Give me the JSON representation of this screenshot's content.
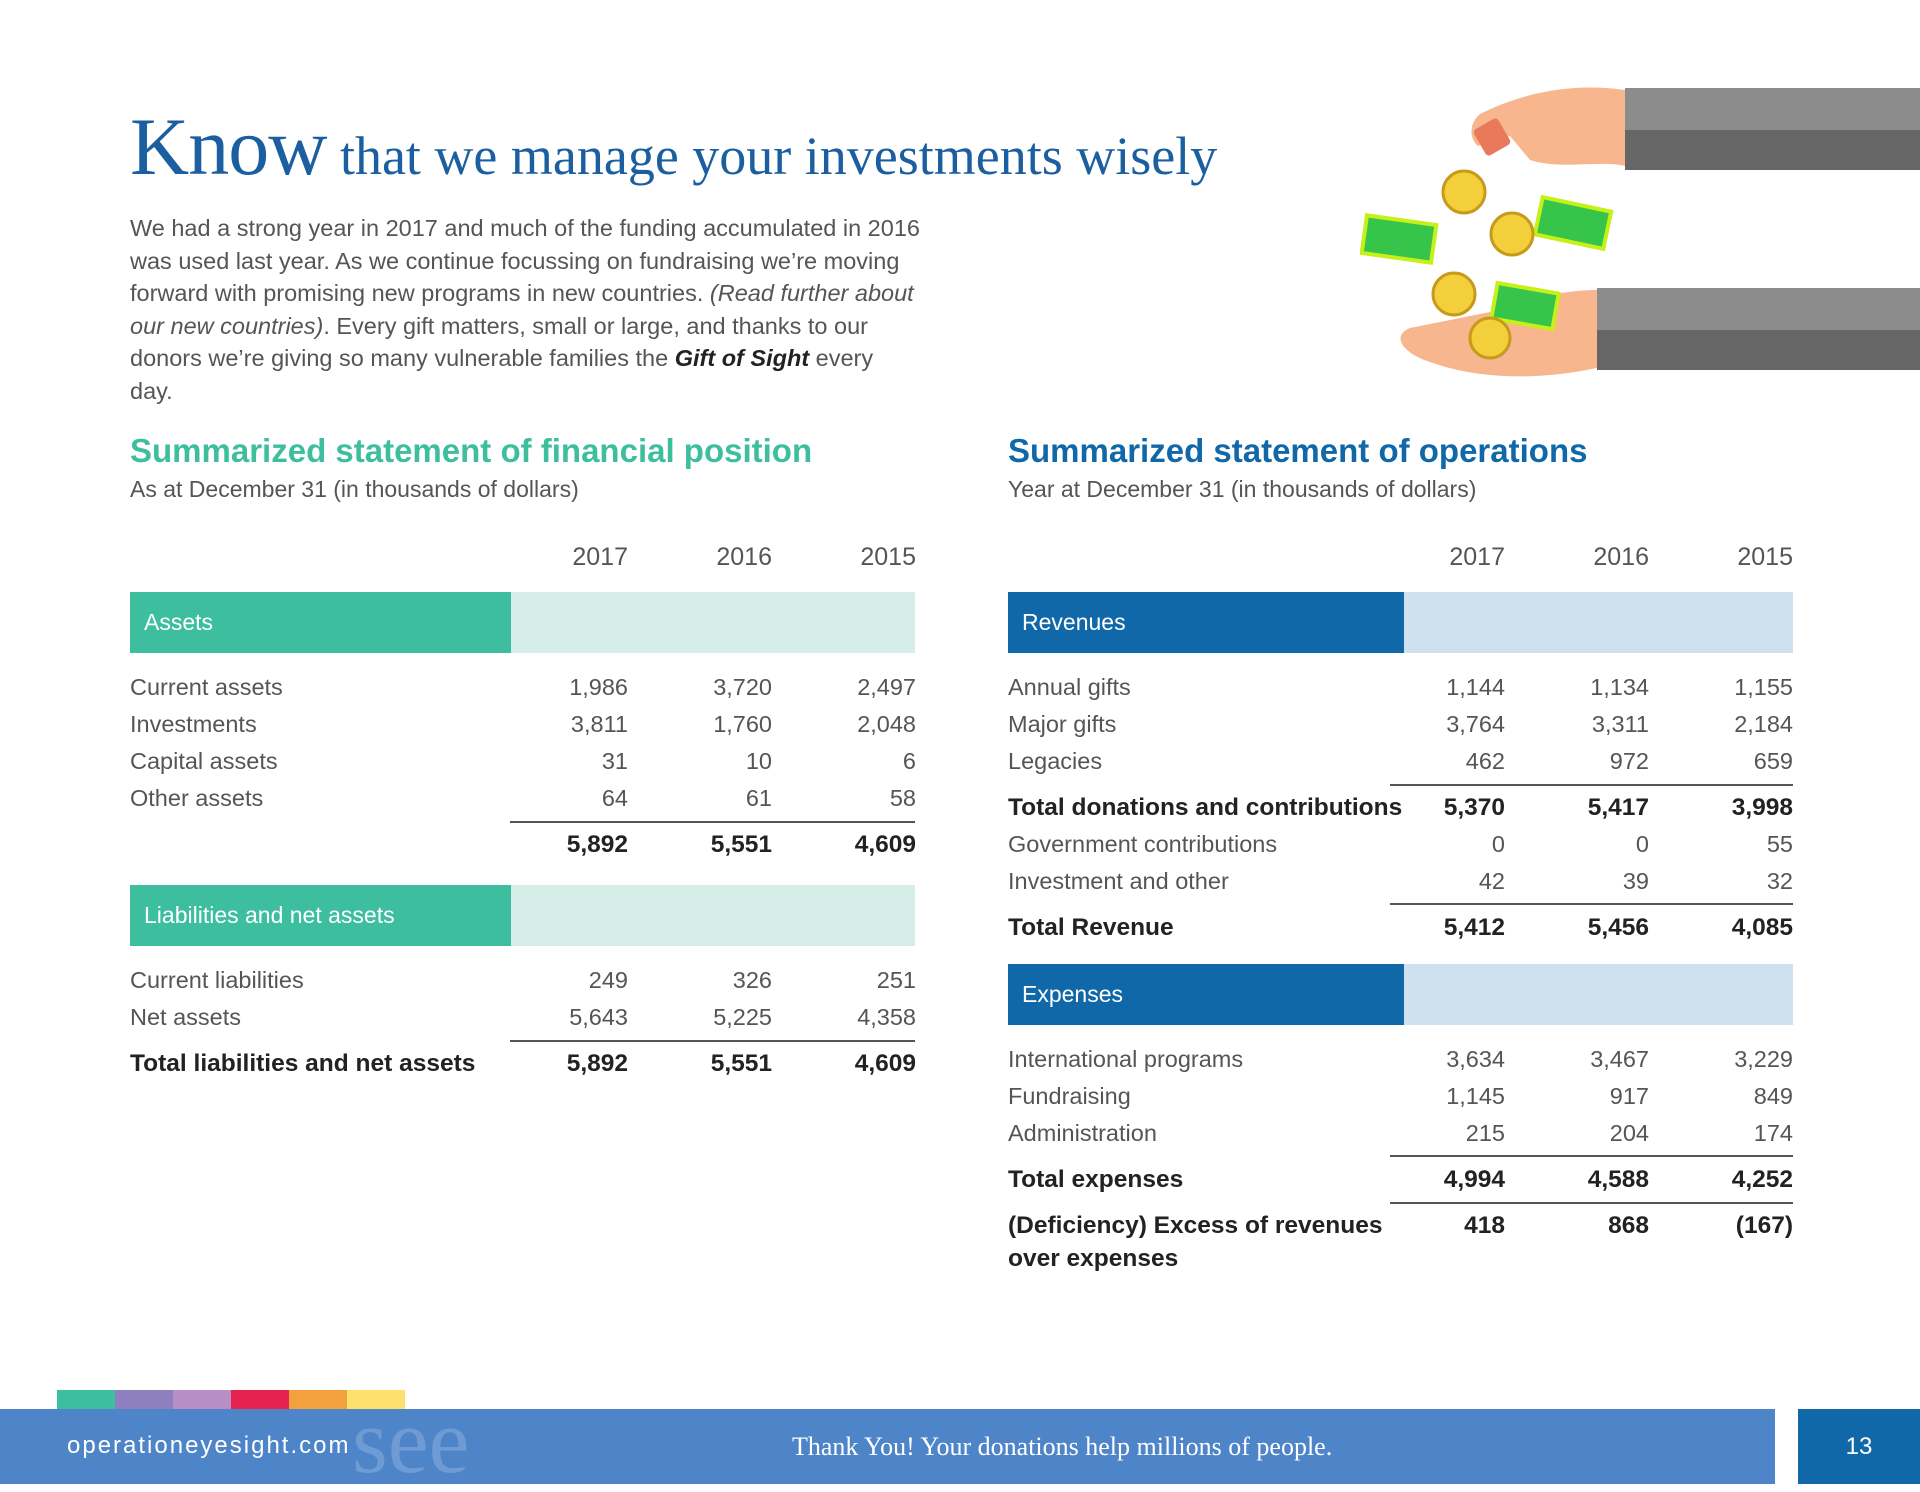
{
  "header": {
    "title_big": "Know",
    "title_rest": " that we manage your investments wisely"
  },
  "intro": {
    "p1": "We had a strong year in 2017 and much of the funding accumulated in 2016 was used last year. As we continue focussing on fundraising we’re moving forward with promising new programs in new countries. ",
    "italic": "(Read further about our new countries)",
    "p2": ". Every gift matters, small or large, and thanks to our donors we’re giving so many vulnerable families the ",
    "gift": "Gift of Sight",
    "p3": " every day."
  },
  "colors": {
    "teal": "#3dbf9f",
    "teal_light": "#d5efe8",
    "blue": "#1068a8",
    "blue_light": "#cfe0ee",
    "footer": "#4e84c8"
  },
  "position": {
    "title": "Summarized statement of financial position",
    "subtitle": "As at December 31 (in thousands of dollars)",
    "years": [
      "2017",
      "2016",
      "2015"
    ],
    "assets_label": "Assets",
    "assets": [
      {
        "name": "Current assets",
        "values": [
          "1,986",
          "3,720",
          "2,497"
        ]
      },
      {
        "name": "Investments",
        "values": [
          "3,811",
          "1,760",
          "2,048"
        ]
      },
      {
        "name": "Capital assets",
        "values": [
          "31",
          "10",
          "6"
        ]
      },
      {
        "name": "Other assets",
        "values": [
          "64",
          "61",
          "58"
        ]
      }
    ],
    "assets_total": [
      "5,892",
      "5,551",
      "4,609"
    ],
    "liab_label": "Liabilities and net assets",
    "liabilities": [
      {
        "name": "Current liabilities",
        "values": [
          "249",
          "326",
          "251"
        ]
      },
      {
        "name": "Net assets",
        "values": [
          "5,643",
          "5,225",
          "4,358"
        ]
      }
    ],
    "liab_total": {
      "name": "Total liabilities and net assets",
      "values": [
        "5,892",
        "5,551",
        "4,609"
      ]
    }
  },
  "operations": {
    "title": "Summarized statement of operations",
    "subtitle": "Year at December 31 (in thousands of dollars)",
    "years": [
      "2017",
      "2016",
      "2015"
    ],
    "revenues_label": "Revenues",
    "revenues": [
      {
        "name": "Annual gifts",
        "values": [
          "1,144",
          "1,134",
          "1,155"
        ]
      },
      {
        "name": "Major gifts",
        "values": [
          "3,764",
          "3,311",
          "2,184"
        ]
      },
      {
        "name": "Legacies",
        "values": [
          "462",
          "972",
          "659"
        ]
      }
    ],
    "total_donations": {
      "name": "Total donations and contributions",
      "values": [
        "5,370",
        "5,417",
        "3,998"
      ]
    },
    "other_revenues": [
      {
        "name": "Government contributions",
        "values": [
          "0",
          "0",
          "55"
        ]
      },
      {
        "name": "Investment and other",
        "values": [
          "42",
          "39",
          "32"
        ]
      }
    ],
    "total_revenue": {
      "name": "Total Revenue",
      "values": [
        "5,412",
        "5,456",
        "4,085"
      ]
    },
    "expenses_label": "Expenses",
    "expenses": [
      {
        "name": "International programs",
        "values": [
          "3,634",
          "3,467",
          "3,229"
        ]
      },
      {
        "name": "Fundraising",
        "values": [
          "1,145",
          "917",
          "849"
        ]
      },
      {
        "name": "Administration",
        "values": [
          "215",
          "204",
          "174"
        ]
      }
    ],
    "total_expenses": {
      "name": "Total expenses",
      "values": [
        "4,994",
        "4,588",
        "4,252"
      ]
    },
    "excess": {
      "name_line1": "(Deficiency) Excess of revenues",
      "name_line2": "over expenses",
      "values": [
        "418",
        "868",
        "(167)"
      ]
    }
  },
  "footer": {
    "site": "operationeyesight.com",
    "see": "see",
    "thanks": "Thank You! Your donations help millions of people.",
    "page": "13",
    "stripe_colors": [
      "#3dbf9f",
      "#8e7fc1",
      "#b98ec6",
      "#e52250",
      "#f3a03f",
      "#fde06e"
    ]
  }
}
